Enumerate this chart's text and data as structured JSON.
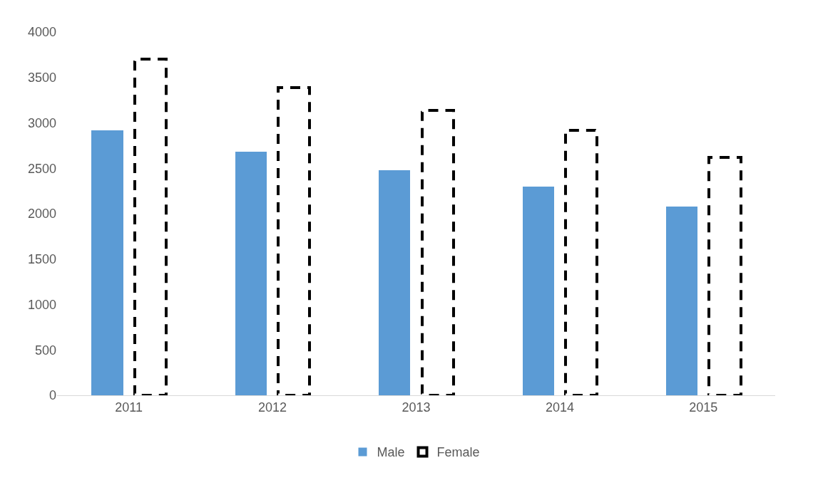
{
  "chart_data": {
    "type": "bar",
    "categories": [
      "2011",
      "2012",
      "2013",
      "2014",
      "2015"
    ],
    "series": [
      {
        "name": "Male",
        "color": "#5b9bd5",
        "values": [
          2920,
          2680,
          2480,
          2300,
          2080
        ]
      },
      {
        "name": "Female",
        "color": "#000000",
        "line_style": "dashed",
        "values": [
          3700,
          3390,
          3140,
          2920,
          2620
        ]
      }
    ],
    "ylim": [
      0,
      4000
    ],
    "yticks": [
      0,
      500,
      1000,
      1500,
      2000,
      2500,
      3000,
      3500,
      4000
    ],
    "legend": "bottom"
  }
}
